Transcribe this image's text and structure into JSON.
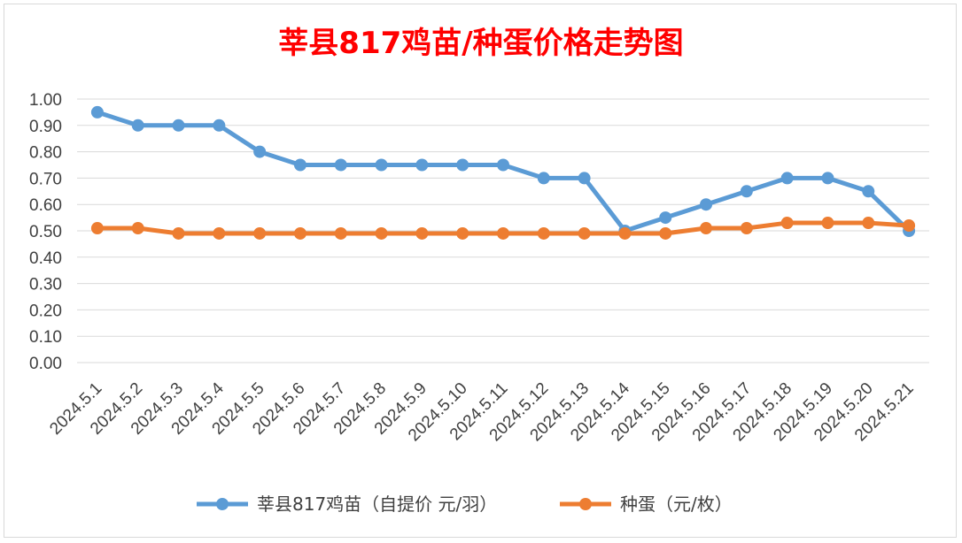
{
  "chart_data": {
    "type": "line",
    "title": "莘县817鸡苗/种蛋价格走势图",
    "title_color": "#ff0000",
    "categories": [
      "2024.5.1",
      "2024.5.2",
      "2024.5.3",
      "2024.5.4",
      "2024.5.5",
      "2024.5.6",
      "2024.5.7",
      "2024.5.8",
      "2024.5.9",
      "2024.5.10",
      "2024.5.11",
      "2024.5.12",
      "2024.5.13",
      "2024.5.14",
      "2024.5.15",
      "2024.5.16",
      "2024.5.17",
      "2024.5.18",
      "2024.5.19",
      "2024.5.20",
      "2024.5.21"
    ],
    "series": [
      {
        "name": "莘县817鸡苗（自提价 元/羽）",
        "color": "#5b9bd5",
        "values": [
          0.95,
          0.9,
          0.9,
          0.9,
          0.8,
          0.75,
          0.75,
          0.75,
          0.75,
          0.75,
          0.75,
          0.7,
          0.7,
          0.5,
          0.55,
          0.6,
          0.65,
          0.7,
          0.7,
          0.65,
          0.5
        ]
      },
      {
        "name": "种蛋（元/枚）",
        "color": "#ed7d31",
        "values": [
          0.51,
          0.51,
          0.49,
          0.49,
          0.49,
          0.49,
          0.49,
          0.49,
          0.49,
          0.49,
          0.49,
          0.49,
          0.49,
          0.49,
          0.49,
          0.51,
          0.51,
          0.53,
          0.53,
          0.53,
          0.52
        ]
      }
    ],
    "ylim": [
      0,
      1.0
    ],
    "yticks": [
      "0.00",
      "0.10",
      "0.20",
      "0.30",
      "0.40",
      "0.50",
      "0.60",
      "0.70",
      "0.80",
      "0.90",
      "1.00"
    ],
    "grid": true,
    "legend_position": "bottom"
  }
}
